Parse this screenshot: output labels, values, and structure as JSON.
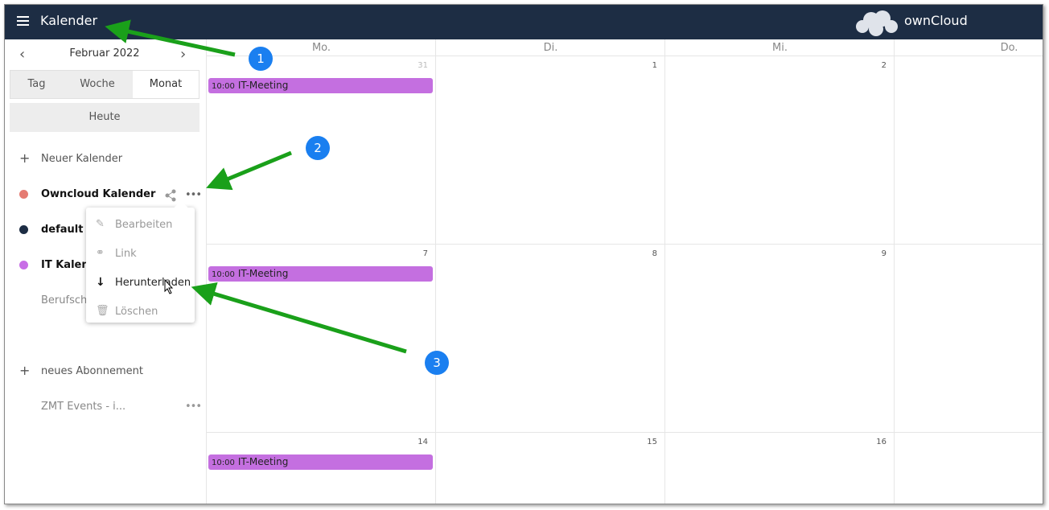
{
  "header": {
    "app_title": "Kalender",
    "brand": "ownCloud"
  },
  "sidebar": {
    "month": "Februar 2022",
    "views": [
      "Tag",
      "Woche",
      "Monat"
    ],
    "today": "Heute",
    "new_calendar": "Neuer Kalender",
    "calendars": [
      {
        "name": "Owncloud Kalender",
        "color": "#e57b72"
      },
      {
        "name": "default",
        "color": "#1d2d44"
      },
      {
        "name": "IT Kalend",
        "color": "#c86ee6"
      },
      {
        "name": "Berufschu"
      }
    ],
    "new_subscription": "neues Abonnement",
    "subscriptions": [
      "ZMT Events - i..."
    ]
  },
  "menu": {
    "items": [
      "Bearbeiten",
      "Link",
      "Herunterladen",
      "Löschen"
    ]
  },
  "calendar": {
    "weekdays": [
      "Mo.",
      "Di.",
      "Mi.",
      "Do."
    ],
    "weeks": [
      [
        "31",
        "1",
        "2",
        null
      ],
      [
        "7",
        "8",
        "9",
        null
      ],
      [
        "14",
        "15",
        "16",
        null
      ]
    ],
    "event": {
      "time": "10:00",
      "title": "IT-Meeting",
      "color": "#c46fe0"
    }
  },
  "annotations": [
    "1",
    "2",
    "3"
  ]
}
